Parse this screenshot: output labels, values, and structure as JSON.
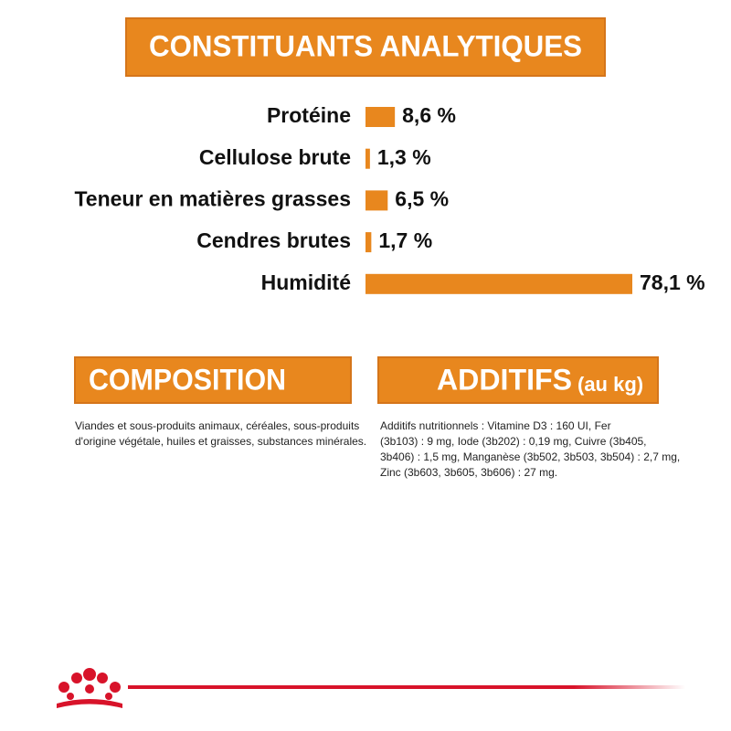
{
  "chart_data": {
    "type": "hbar",
    "title": "CONSTITUANTS ANALYTIQUES",
    "categories": [
      "Protéine",
      "Cellulose brute",
      "Teneur en matières grasses",
      "Cendres brutes",
      "Humidité"
    ],
    "values": [
      8.6,
      1.3,
      6.5,
      1.7,
      78.1
    ],
    "value_labels": [
      "8,6 %",
      "1,3 %",
      "6,5 %",
      "1,7 %",
      "78,1 %"
    ],
    "color": "#e8871e"
  },
  "composition": {
    "title": "COMPOSITION",
    "lines": [
      "Viandes et sous-produits animaux, céréales, sous-produits",
      "d'origine végétale, huiles et graisses, substances minérales."
    ]
  },
  "additifs": {
    "title": "ADDITIFS",
    "subtitle": "(au kg)",
    "lines": [
      "Additifs nutritionnels : Vitamine D3 : 160 UI, Fer",
      "(3b103) : 9 mg, Iode (3b202) : 0,19 mg, Cuivre (3b405,",
      "3b406) : 1,5 mg, Manganèse (3b502, 3b503, 3b504) : 2,7 mg,",
      "Zinc (3b603, 3b605, 3b606) : 27 mg."
    ]
  }
}
